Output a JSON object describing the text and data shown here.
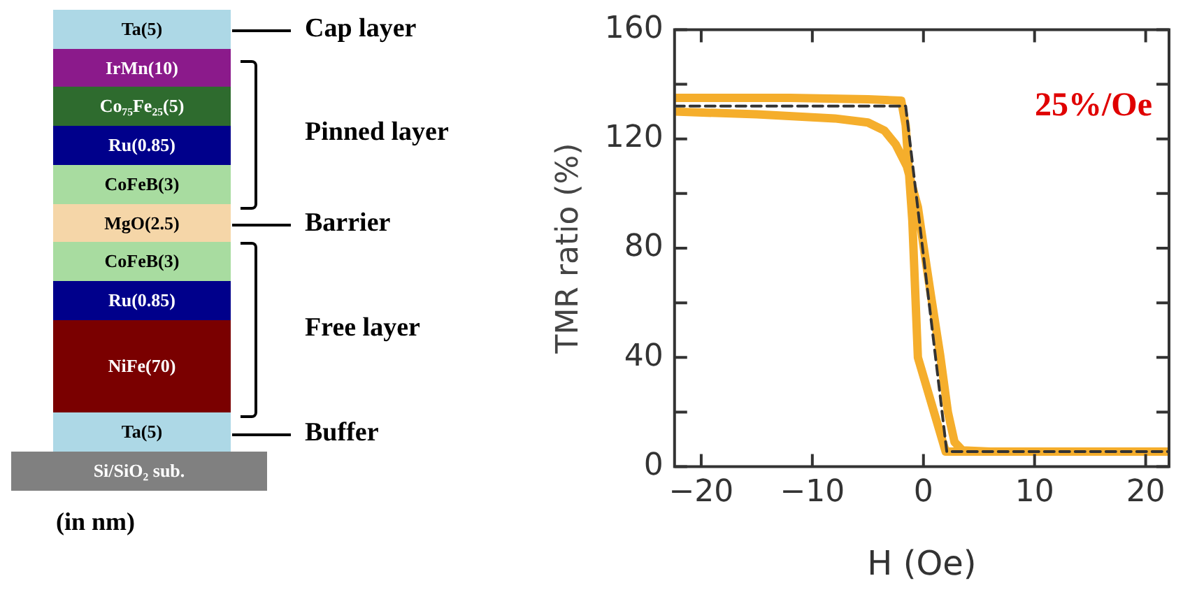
{
  "chart_data": [
    {
      "type": "other",
      "annotations": [
        "Ta(5)",
        "IrMn(10)",
        "Co₇₅Fe₂₅(5)",
        "Ru(0.85)",
        "CoFeB(3)",
        "MgO(2.5)",
        "CoFeB(3)",
        "Ru(0.85)",
        "NiFe(70)",
        "Ta(5)",
        "Si/SiO₂ sub.",
        "Cap layer",
        "Pinned layer",
        "Barrier",
        "Free layer",
        "Buffer",
        "(in nm)"
      ]
    },
    {
      "type": "line",
      "xlabel": "H (Oe)",
      "ylabel": "TMR ratio (%)",
      "xlim": [
        -22.4,
        22.1
      ],
      "ylim": [
        0,
        160
      ],
      "xticks": [
        {
          "value": -20,
          "label": "−20"
        },
        {
          "value": -10,
          "label": "−10"
        },
        0,
        10,
        20
      ],
      "yticks": [
        0,
        {
          "value": 20,
          "label": null
        },
        40,
        {
          "value": 60,
          "label": null
        },
        80,
        {
          "value": 100,
          "label": null
        },
        120,
        {
          "value": 140,
          "label": null
        },
        160
      ],
      "grid": false,
      "legend": false,
      "annotations": [
        "25%/Oe"
      ],
      "series": [
        {
          "color": "#f5ae2c",
          "line_style": "solid",
          "x": [
            -22.4,
            -15,
            -8,
            -5,
            -3.5,
            -2.5,
            -1.5,
            -0.5,
            0,
            0.7,
            1.5,
            2.2,
            2.8,
            3.5,
            6,
            12,
            18,
            22.1,
            18,
            10,
            2,
            -0.5,
            -1,
            -1.6,
            -2,
            -5,
            -12,
            -22.4
          ],
          "values": [
            130,
            129,
            127.5,
            126,
            123,
            118,
            110,
            95,
            81,
            62,
            41,
            20,
            9,
            6,
            5.5,
            5.5,
            5.5,
            5.5,
            5.5,
            5.5,
            5.5,
            40,
            90,
            125,
            134,
            134.5,
            135,
            135
          ]
        },
        {
          "color": "#333333",
          "line_style": "dashed",
          "x": [
            -22.4,
            -1.6,
            2.1,
            22.1
          ],
          "values": [
            132,
            132,
            5.5,
            5.5
          ]
        }
      ]
    }
  ]
}
